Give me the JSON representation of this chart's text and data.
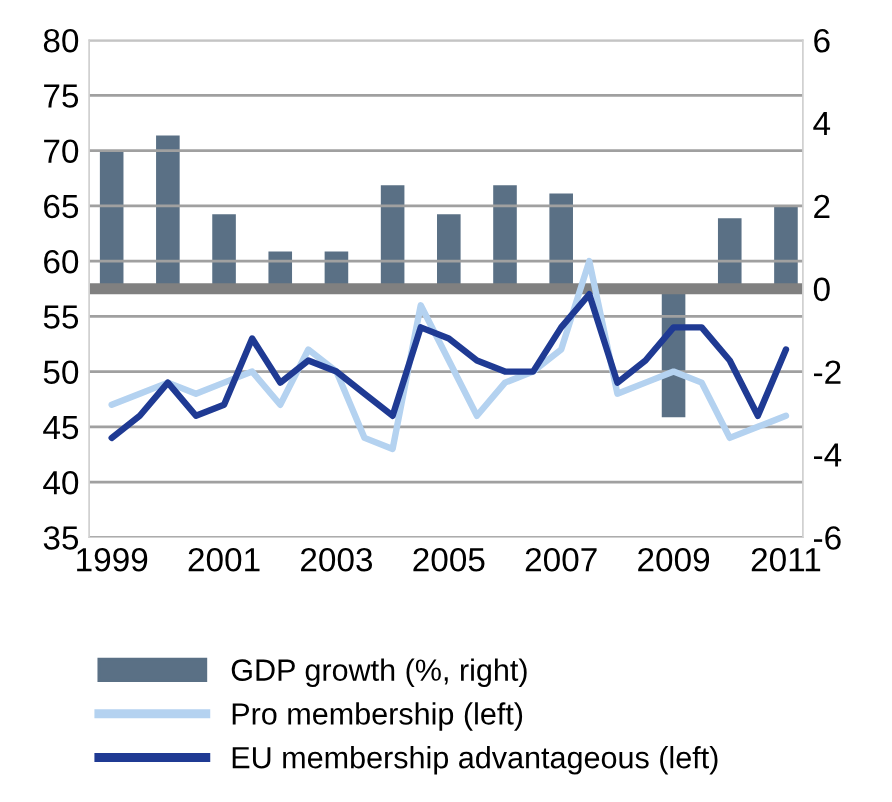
{
  "chart_data": {
    "type": "line",
    "xlim": [
      1998.6,
      2011.3
    ],
    "xticks": [
      1999,
      2001,
      2003,
      2005,
      2007,
      2009,
      2011
    ],
    "ylim": [
      35,
      80
    ],
    "yticks": [
      35,
      40,
      45,
      50,
      55,
      60,
      65,
      70,
      75,
      80
    ],
    "y2lim": [
      -6,
      6
    ],
    "y2ticks": [
      -6,
      -4,
      -2,
      0,
      2,
      4,
      6
    ],
    "grid": "y",
    "legend": "bottom",
    "line_style": "solid",
    "marker": "none",
    "ref_lines": [
      {
        "axis": "y2",
        "value": 0,
        "color": "#808080"
      }
    ],
    "series": [
      {
        "name": "GDP growth (%, right)",
        "type": "bar",
        "axis": "y2",
        "color": "#5a7085",
        "x": [
          1999,
          2000,
          2001,
          2002,
          2003,
          2004,
          2005,
          2006,
          2007,
          2008,
          2009,
          2010,
          2011
        ],
        "values": [
          3.3,
          3.7,
          1.8,
          0.9,
          0.9,
          2.5,
          1.8,
          2.5,
          2.3,
          null,
          -3.1,
          1.7,
          2.0
        ]
      },
      {
        "name": "Pro membership (left)",
        "color": "#b4d2f0",
        "x": [
          1999,
          1999.5,
          2000,
          2000.5,
          2001,
          2001.5,
          2002,
          2002.5,
          2003,
          2003.5,
          2004,
          2004.5,
          2005,
          2005.5,
          2006,
          2006.5,
          2007,
          2007.5,
          2008,
          2008.5,
          2009,
          2009.5,
          2010,
          2010.5,
          2011
        ],
        "values": [
          47,
          48,
          49,
          48,
          49,
          50,
          47,
          52,
          50,
          44,
          43,
          56,
          51,
          46,
          49,
          50,
          52,
          60,
          48,
          49,
          50,
          49,
          44,
          45,
          46
        ]
      },
      {
        "name": "EU membership advantageous (left)",
        "color": "#1f3a93",
        "x": [
          1999,
          1999.5,
          2000,
          2000.5,
          2001,
          2001.5,
          2002,
          2002.5,
          2003,
          2003.5,
          2004,
          2004.5,
          2005,
          2005.5,
          2006,
          2006.5,
          2007,
          2007.5,
          2008,
          2008.5,
          2009,
          2009.5,
          2010,
          2010.5,
          2011
        ],
        "values": [
          44,
          46,
          49,
          46,
          47,
          53,
          49,
          51,
          50,
          48,
          46,
          54,
          53,
          51,
          50,
          50,
          54,
          57,
          49,
          51,
          54,
          54,
          51,
          46,
          52
        ]
      }
    ]
  }
}
